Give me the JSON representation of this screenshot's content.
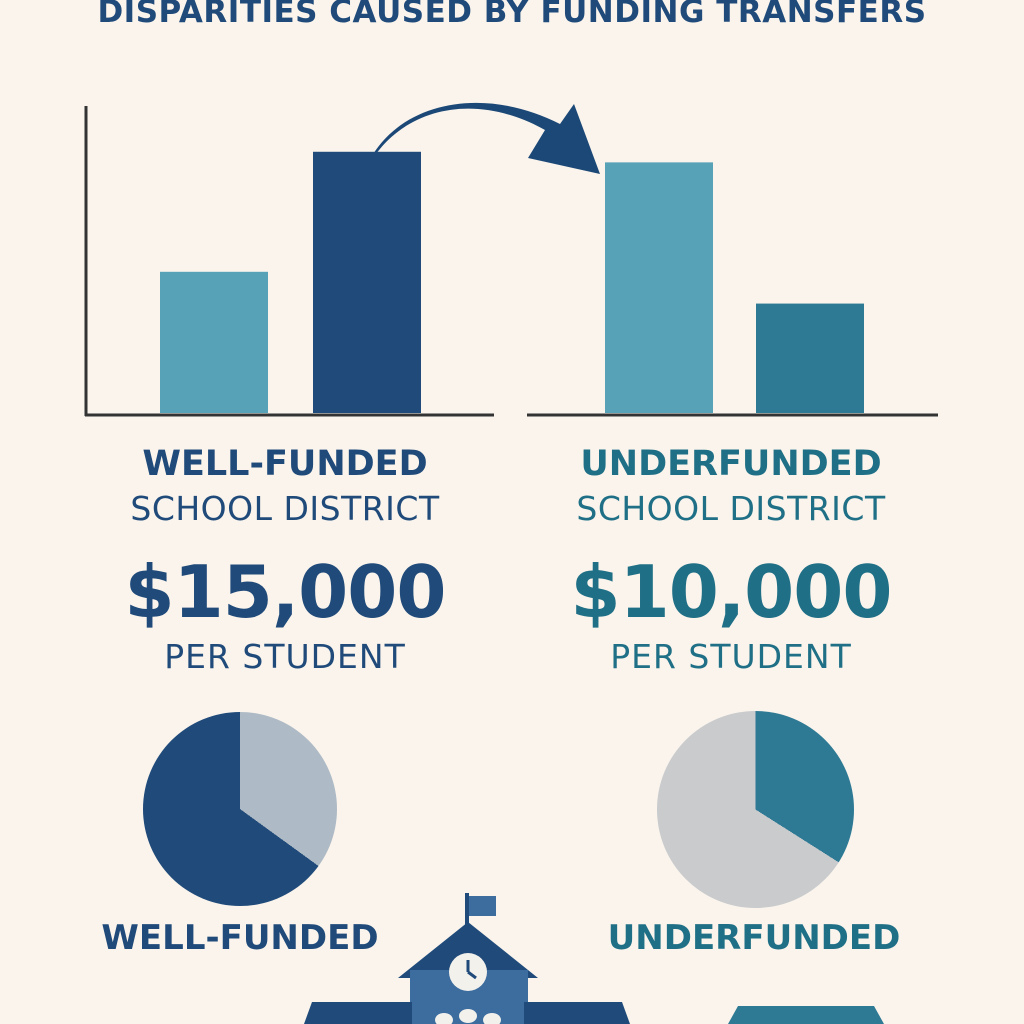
{
  "title": "DISPARITIES CAUSED BY FUNDING TRANSFERS",
  "colors": {
    "navy": "#1f4a7a",
    "teal": "#1f6f86",
    "light_blue": "#58a2b8",
    "mid_teal": "#2e7a95",
    "grey": "#c9cbcd",
    "light_grey": "#aebac5",
    "axis": "#333333",
    "arrow": "#1c4877"
  },
  "left": {
    "heading": "WELL-FUNDED",
    "subheading": "SCHOOL DISTRICT",
    "amount": "$15,000",
    "unit": "PER STUDENT",
    "pie_label": "WELL-FUNDED"
  },
  "right": {
    "heading": "UNDERFUNDED",
    "subheading": "SCHOOL DISTRICT",
    "amount": "$10,000",
    "unit": "PER STUDENT",
    "pie_label": "UNDERFUNDED"
  },
  "chart_data": [
    {
      "type": "bar",
      "panel": "left",
      "values": [
        40,
        74
      ],
      "ylim": [
        0,
        100
      ],
      "xlabel": "",
      "ylabel": ""
    },
    {
      "type": "bar",
      "panel": "right",
      "values": [
        71,
        31
      ],
      "ylim": [
        0,
        100
      ],
      "xlabel": "",
      "ylabel": ""
    },
    {
      "type": "pie",
      "panel": "left",
      "slices": [
        65,
        35
      ]
    },
    {
      "type": "pie",
      "panel": "right",
      "slices": [
        34,
        66
      ]
    }
  ]
}
